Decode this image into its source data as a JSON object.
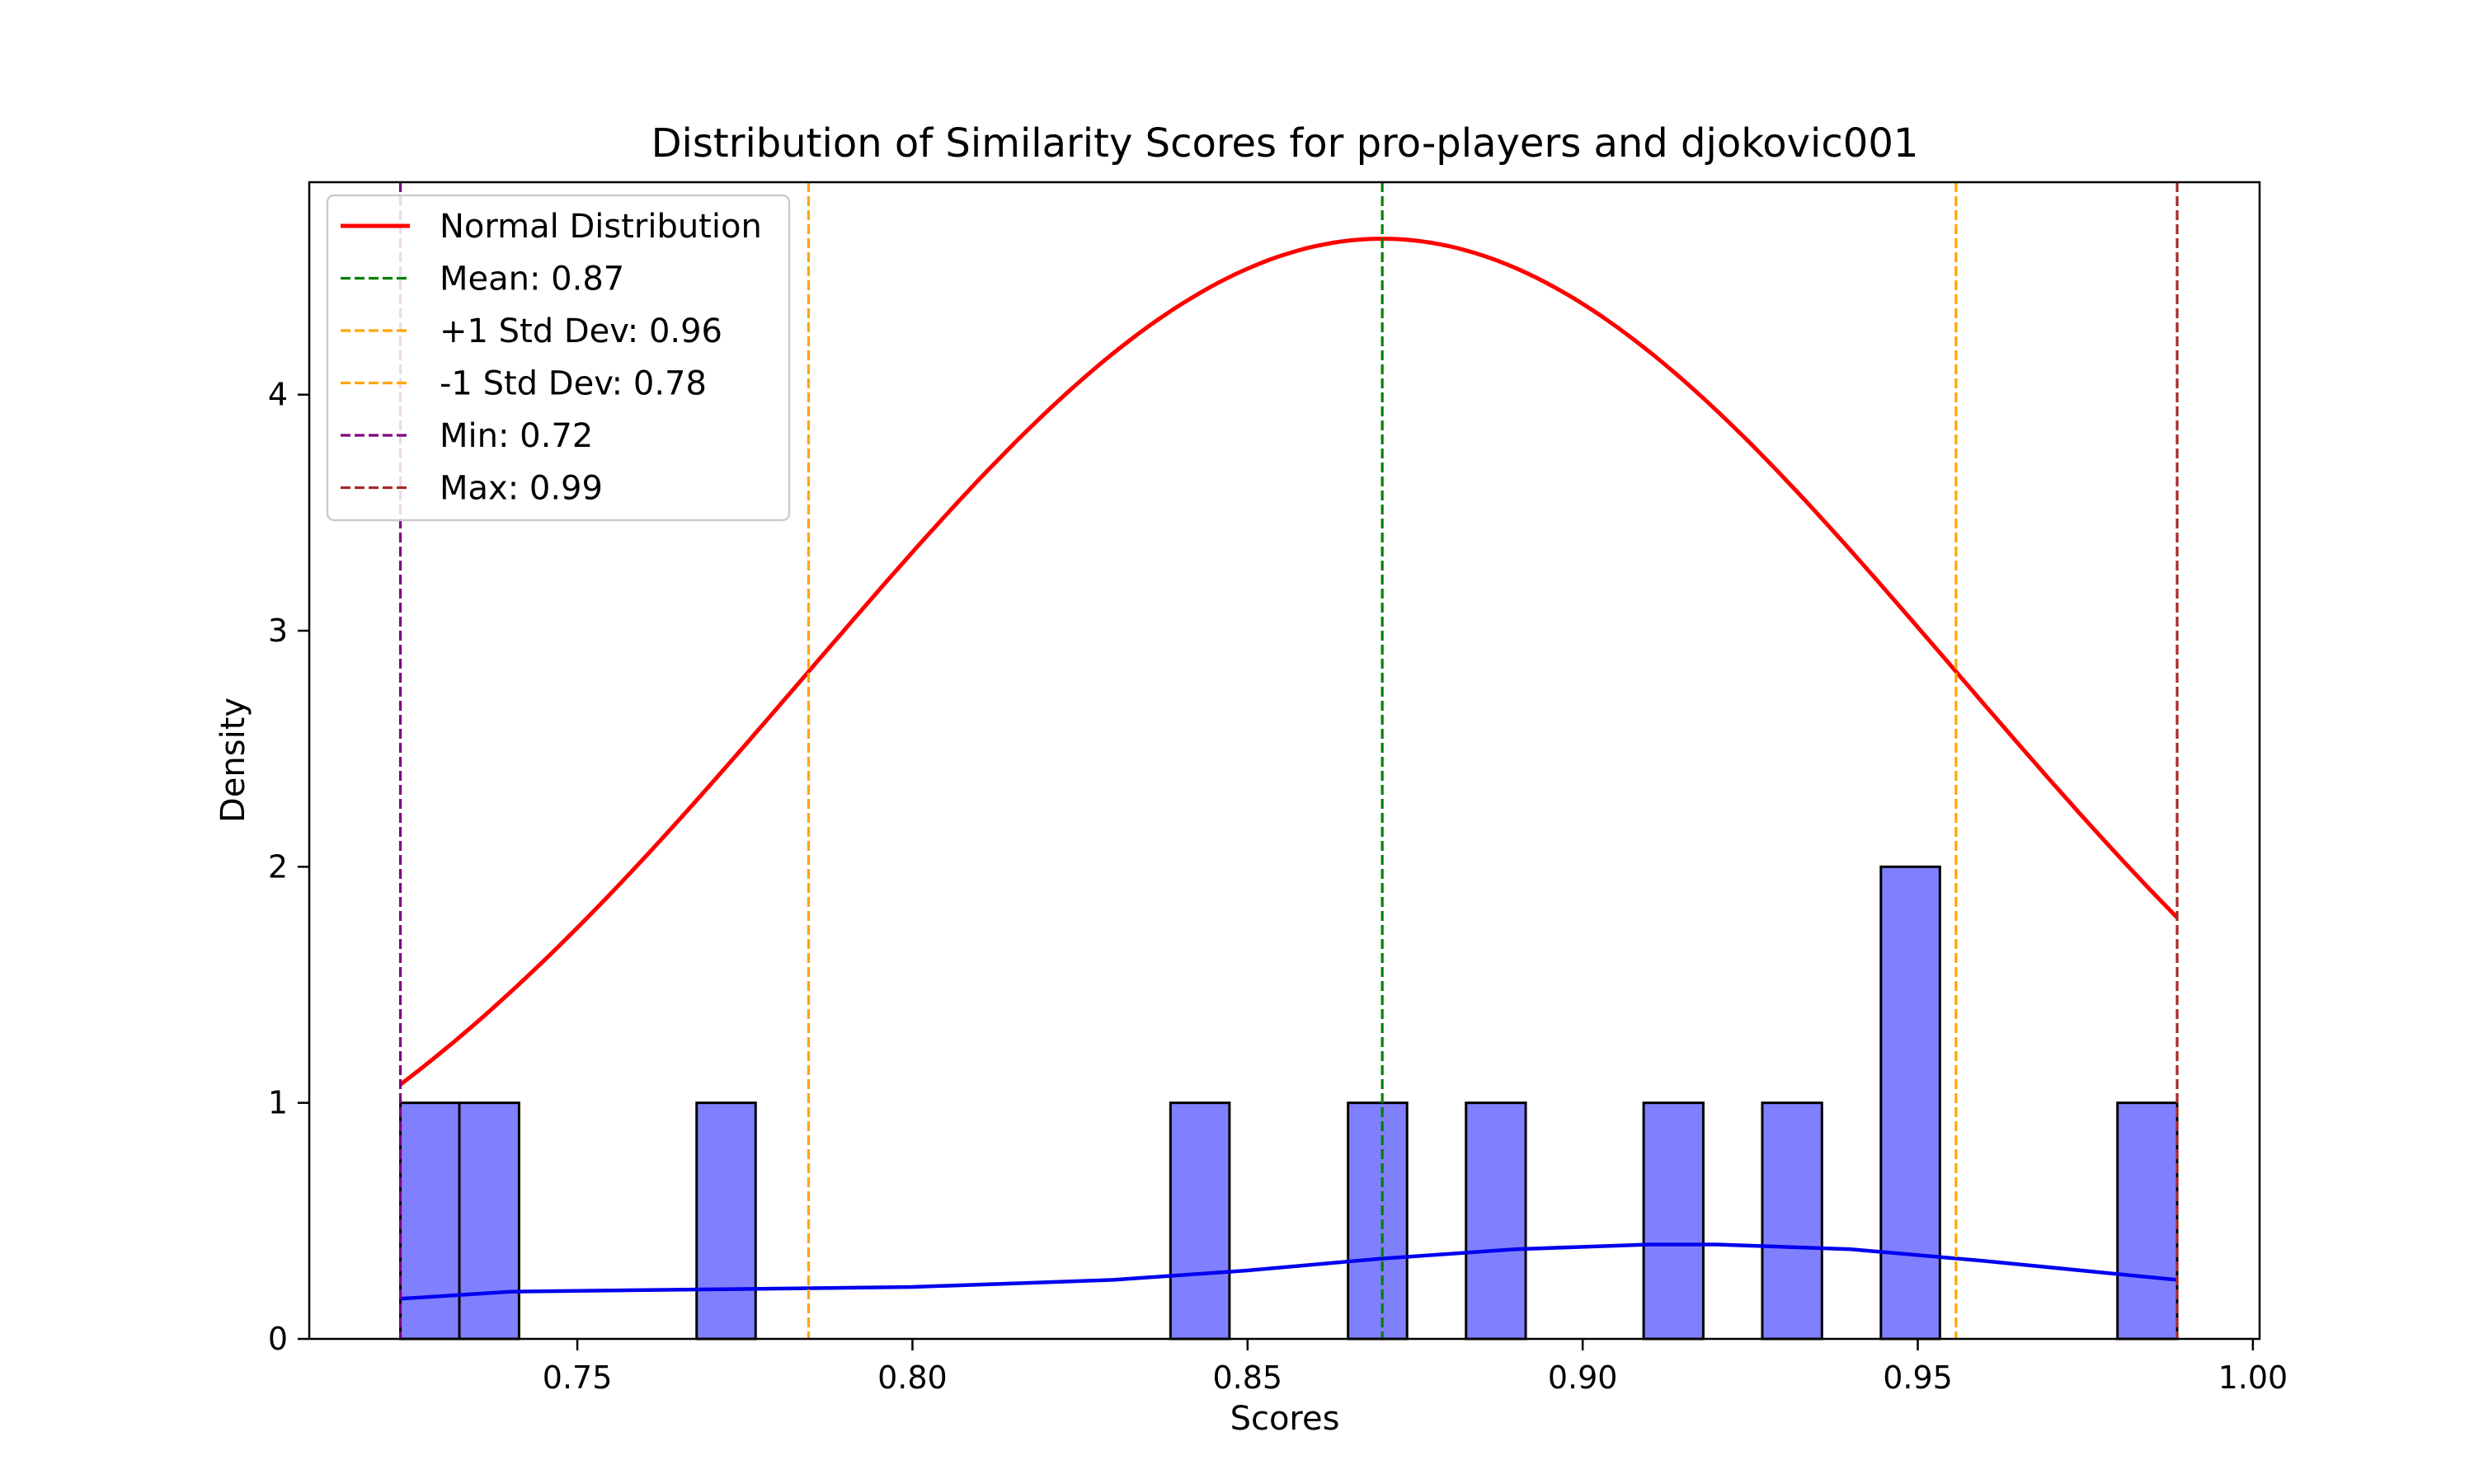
{
  "chart_data": {
    "type": "bar",
    "title": "Distribution of Similarity Scores for pro-players and djokovic001",
    "xlabel": "Scores",
    "ylabel": "Density",
    "xlim": [
      0.71,
      1.001
    ],
    "ylim": [
      0,
      4.9
    ],
    "x_ticks": [
      "0.75",
      "0.80",
      "0.85",
      "0.90",
      "0.95",
      "1.00"
    ],
    "y_ticks": [
      "0",
      "1",
      "2",
      "3",
      "4"
    ],
    "grid": false,
    "legend_position": "top-left",
    "histogram": {
      "color": "#8080ff",
      "edge_color": "#000000",
      "bins": [
        {
          "x0": 0.7236,
          "x1": 0.7324,
          "density": 1
        },
        {
          "x0": 0.7324,
          "x1": 0.7413,
          "density": 1
        },
        {
          "x0": 0.7678,
          "x1": 0.7766,
          "density": 1
        },
        {
          "x0": 0.8385,
          "x1": 0.8473,
          "density": 1
        },
        {
          "x0": 0.865,
          "x1": 0.8738,
          "density": 1
        },
        {
          "x0": 0.8826,
          "x1": 0.8915,
          "density": 1
        },
        {
          "x0": 0.9091,
          "x1": 0.918,
          "density": 1
        },
        {
          "x0": 0.9268,
          "x1": 0.9357,
          "density": 1
        },
        {
          "x0": 0.9445,
          "x1": 0.9533,
          "density": 2
        },
        {
          "x0": 0.9798,
          "x1": 0.9887,
          "density": 1
        }
      ]
    },
    "kde": {
      "color": "#0000ee",
      "x": [
        0.7236,
        0.74,
        0.77,
        0.8,
        0.83,
        0.85,
        0.87,
        0.89,
        0.91,
        0.92,
        0.94,
        0.96,
        0.9887
      ],
      "y": [
        0.17,
        0.2,
        0.21,
        0.22,
        0.25,
        0.29,
        0.34,
        0.38,
        0.4,
        0.4,
        0.38,
        0.33,
        0.25
      ]
    },
    "normal_curve": {
      "name": "Normal Distribution",
      "color": "#ff0000",
      "mean": 0.8701,
      "std": 0.0856,
      "x_start": 0.7236,
      "x_end": 0.9887
    },
    "reference_lines": [
      {
        "name": "Mean: 0.87",
        "x": 0.8701,
        "color": "#008000"
      },
      {
        "name": "+1 Std Dev: 0.96",
        "x": 0.9557,
        "color": "#ffa500"
      },
      {
        "name": "-1 Std Dev: 0.78",
        "x": 0.7845,
        "color": "#ffa500"
      },
      {
        "name": "Min: 0.72",
        "x": 0.7236,
        "color": "#800080"
      },
      {
        "name": "Max: 0.99",
        "x": 0.9887,
        "color": "#a52a2a"
      }
    ]
  }
}
